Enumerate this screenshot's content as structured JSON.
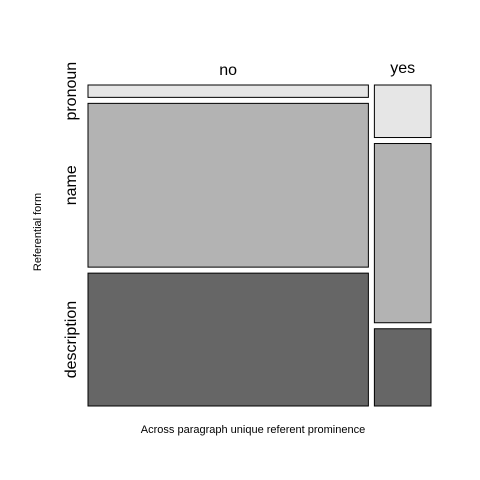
{
  "chart_data": {
    "type": "mosaic",
    "title": "",
    "xlabel": "Across paragraph unique referent prominence",
    "ylabel": "Referential form",
    "x_categories": [
      "no",
      "yes"
    ],
    "y_categories": [
      "pronoun",
      "name",
      "description"
    ],
    "proportions": {
      "column_widths": [
        0.832,
        0.168
      ],
      "no": {
        "pronoun": 0.04,
        "name": 0.53,
        "description": 0.43
      },
      "yes": {
        "pronoun": 0.17,
        "name": 0.58,
        "description": 0.25
      }
    },
    "colors": {
      "pronoun": "#e6e6e6",
      "name": "#b3b3b3",
      "description": "#666666"
    },
    "grid": false,
    "legend": "none"
  }
}
